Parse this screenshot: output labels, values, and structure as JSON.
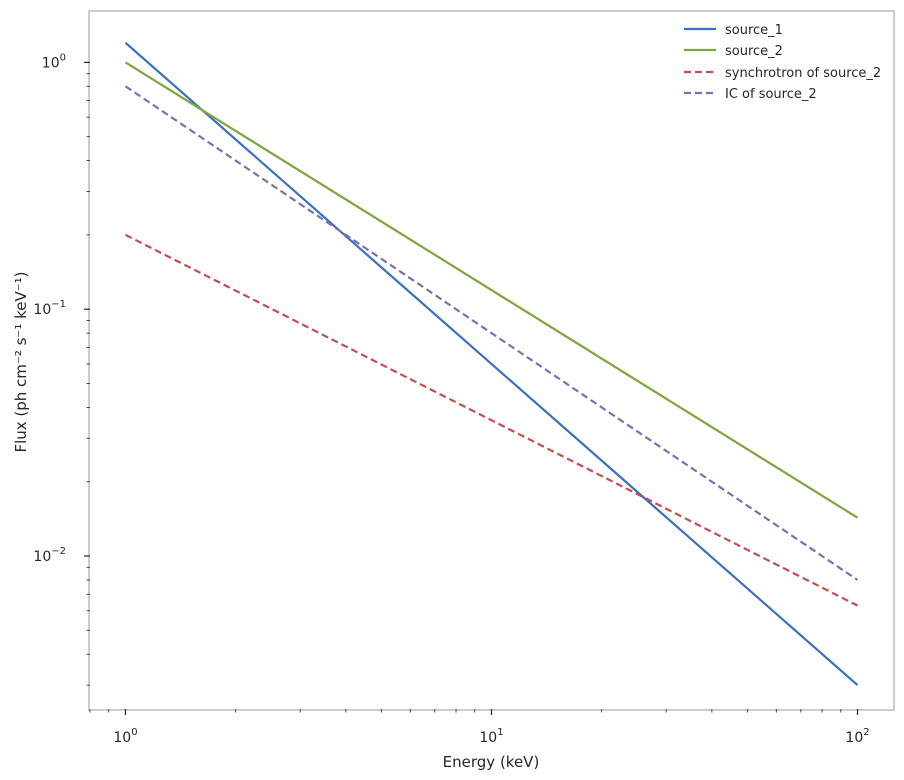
{
  "chart_data": {
    "type": "line",
    "xscale": "log",
    "yscale": "log",
    "xlabel": "Energy (keV)",
    "ylabel": "Flux (ph cm⁻² s⁻¹ keV⁻¹",
    "ylabel_close": ")",
    "xlim": [
      0.8,
      125
    ],
    "ylim": [
      0.0024,
      1.6
    ],
    "x_ticks": [
      {
        "value": 1,
        "base": "10",
        "exp": "0"
      },
      {
        "value": 10,
        "base": "10",
        "exp": "1"
      },
      {
        "value": 100,
        "base": "10",
        "exp": "2"
      }
    ],
    "y_ticks": [
      {
        "value": 0.01,
        "base": "10",
        "exp": "−2"
      },
      {
        "value": 0.1,
        "base": "10",
        "exp": "−1"
      },
      {
        "value": 1,
        "base": "10",
        "exp": "0"
      }
    ],
    "legend_position": "top-right",
    "series": [
      {
        "name": "source_1",
        "style": "solid",
        "color": "#3a6fc4",
        "x": [
          1,
          100
        ],
        "y": [
          1.2,
          0.003
        ]
      },
      {
        "name": "source_2",
        "style": "solid",
        "color": "#7ea63c",
        "x": [
          1,
          100
        ],
        "y": [
          1.0,
          0.0143
        ]
      },
      {
        "name": "synchrotron of source_2",
        "style": "dashed",
        "color": "#c44e52",
        "x": [
          1,
          100
        ],
        "y": [
          0.2,
          0.0063
        ]
      },
      {
        "name": "IC of source_2",
        "style": "dashed",
        "color": "#7a70b0",
        "x": [
          1,
          100
        ],
        "y": [
          0.8,
          0.008
        ]
      }
    ]
  }
}
